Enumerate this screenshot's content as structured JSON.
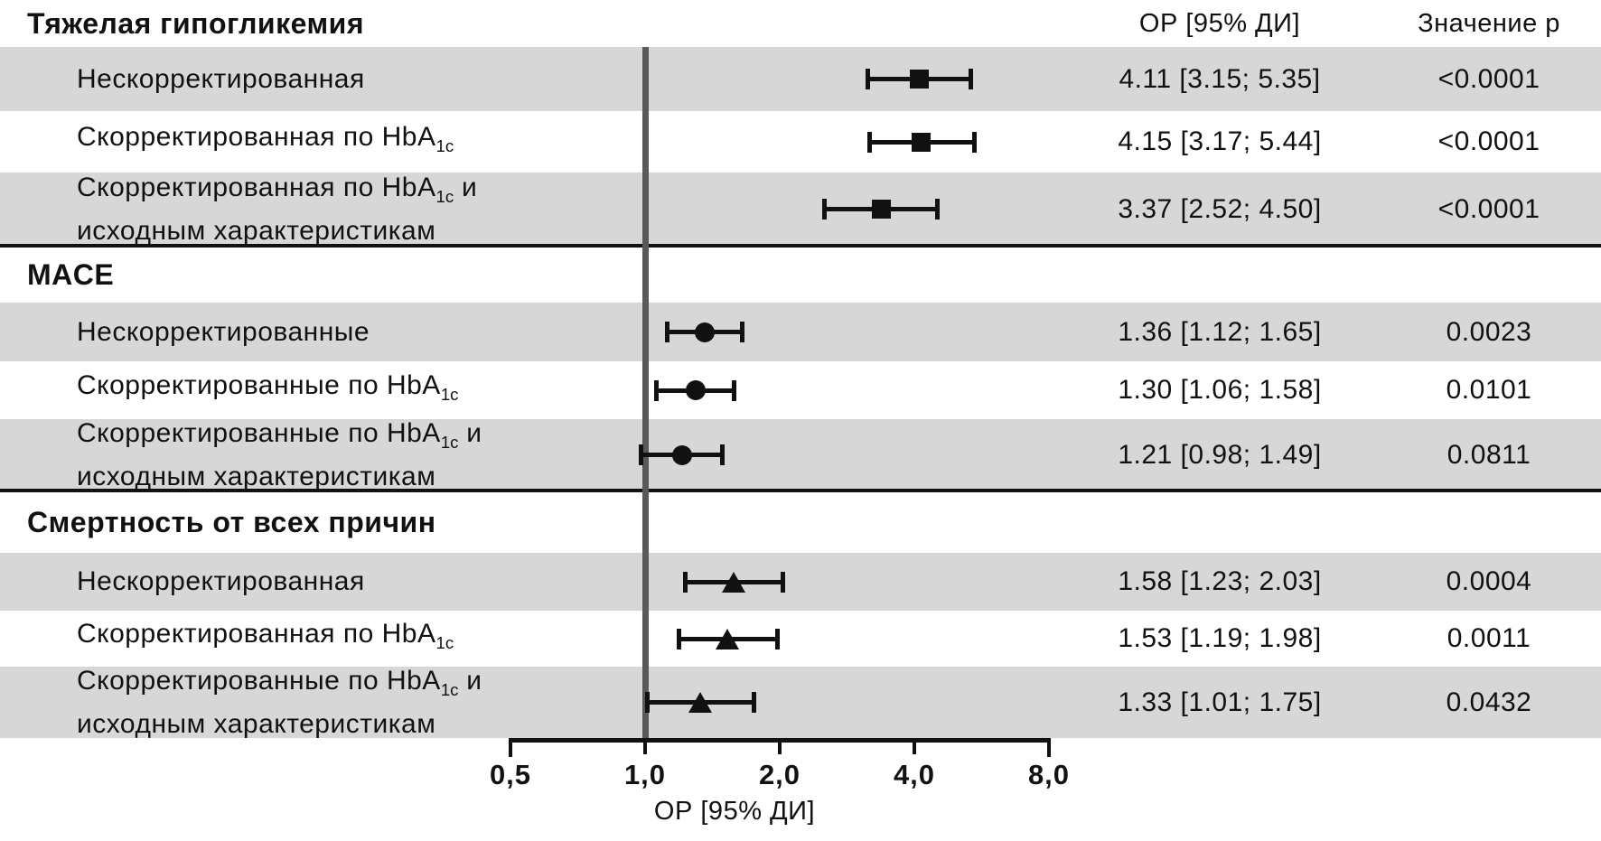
{
  "colors": {
    "background": "#ffffff",
    "row_shade": "#d7d7d7",
    "reference_line": "#595959",
    "ink": "#111111"
  },
  "chart_data": {
    "type": "forest",
    "x_scale": "log2",
    "x_range": [
      0.5,
      8.0
    ],
    "reference_line_value": 1.0,
    "xlabel": "ОР [95% ДИ]",
    "x_ticks": [
      {
        "value": 0.5,
        "label": "0,5"
      },
      {
        "value": 1.0,
        "label": "1,0"
      },
      {
        "value": 2.0,
        "label": "2,0"
      },
      {
        "value": 4.0,
        "label": "4,0"
      },
      {
        "value": 8.0,
        "label": "8,0"
      }
    ],
    "column_headers": {
      "estimate": "ОР [95% ДИ]",
      "p_value": "Значение p"
    },
    "sections": [
      {
        "title": "Тяжелая гипогликемия",
        "marker": "square",
        "rows": [
          {
            "label": "Нескорректированная",
            "label_parts": {
              "pre": "Нескорректированная",
              "sub": "",
              "post": "",
              "line2": ""
            },
            "or": 4.11,
            "ci_low": 3.15,
            "ci_high": 5.35,
            "estimate_label": "4.11 [3.15; 5.35]",
            "p_label": "<0.0001",
            "shaded": true
          },
          {
            "label": "Скорректированная по HbA1c",
            "label_parts": {
              "pre": "Скорректированная по HbA",
              "sub": "1c",
              "post": "",
              "line2": ""
            },
            "or": 4.15,
            "ci_low": 3.17,
            "ci_high": 5.44,
            "estimate_label": "4.15 [3.17; 5.44]",
            "p_label": "<0.0001",
            "shaded": false
          },
          {
            "label": "Скорректированная по HbA1c и исходным характеристикам",
            "label_parts": {
              "pre": "Скорректированная по HbA",
              "sub": "1c",
              "post": " и",
              "line2": "исходным характеристикам"
            },
            "or": 3.37,
            "ci_low": 2.52,
            "ci_high": 4.5,
            "estimate_label": "3.37 [2.52; 4.50]",
            "p_label": "<0.0001",
            "shaded": true
          }
        ]
      },
      {
        "title": "MACE",
        "marker": "circle",
        "rows": [
          {
            "label": "Нескорректированные",
            "label_parts": {
              "pre": "Нескорректированные",
              "sub": "",
              "post": "",
              "line2": ""
            },
            "or": 1.36,
            "ci_low": 1.12,
            "ci_high": 1.65,
            "estimate_label": "1.36 [1.12; 1.65]",
            "p_label": "0.0023",
            "shaded": true
          },
          {
            "label": "Скорректированные по HbA1c",
            "label_parts": {
              "pre": "Скорректированные по HbA",
              "sub": "1c",
              "post": "",
              "line2": ""
            },
            "or": 1.3,
            "ci_low": 1.06,
            "ci_high": 1.58,
            "estimate_label": "1.30 [1.06; 1.58]",
            "p_label": "0.0101",
            "shaded": false
          },
          {
            "label": "Скорректированные по HbA1c и исходным характеристикам",
            "label_parts": {
              "pre": "Скорректированные по HbA",
              "sub": "1c",
              "post": " и",
              "line2": "исходным характеристикам"
            },
            "or": 1.21,
            "ci_low": 0.98,
            "ci_high": 1.49,
            "estimate_label": "1.21 [0.98; 1.49]",
            "p_label": "0.0811",
            "shaded": true
          }
        ]
      },
      {
        "title": "Смертность от всех причин",
        "marker": "triangle",
        "rows": [
          {
            "label": "Нескорректированная",
            "label_parts": {
              "pre": "Нескорректированная",
              "sub": "",
              "post": "",
              "line2": ""
            },
            "or": 1.58,
            "ci_low": 1.23,
            "ci_high": 2.03,
            "estimate_label": "1.58 [1.23; 2.03]",
            "p_label": "0.0004",
            "shaded": true
          },
          {
            "label": "Скорректированная по HbA1c",
            "label_parts": {
              "pre": "Скорректированная по HbA",
              "sub": "1c",
              "post": "",
              "line2": ""
            },
            "or": 1.53,
            "ci_low": 1.19,
            "ci_high": 1.98,
            "estimate_label": "1.53 [1.19; 1.98]",
            "p_label": "0.0011",
            "shaded": false
          },
          {
            "label": "Скорректированные по HbA1c и исходным характеристикам",
            "label_parts": {
              "pre": "Скорректированные по HbA",
              "sub": "1c",
              "post": " и",
              "line2": "исходным характеристикам"
            },
            "or": 1.33,
            "ci_low": 1.01,
            "ci_high": 1.75,
            "estimate_label": "1.33 [1.01; 1.75]",
            "p_label": "0.0432",
            "shaded": true
          }
        ]
      }
    ]
  }
}
